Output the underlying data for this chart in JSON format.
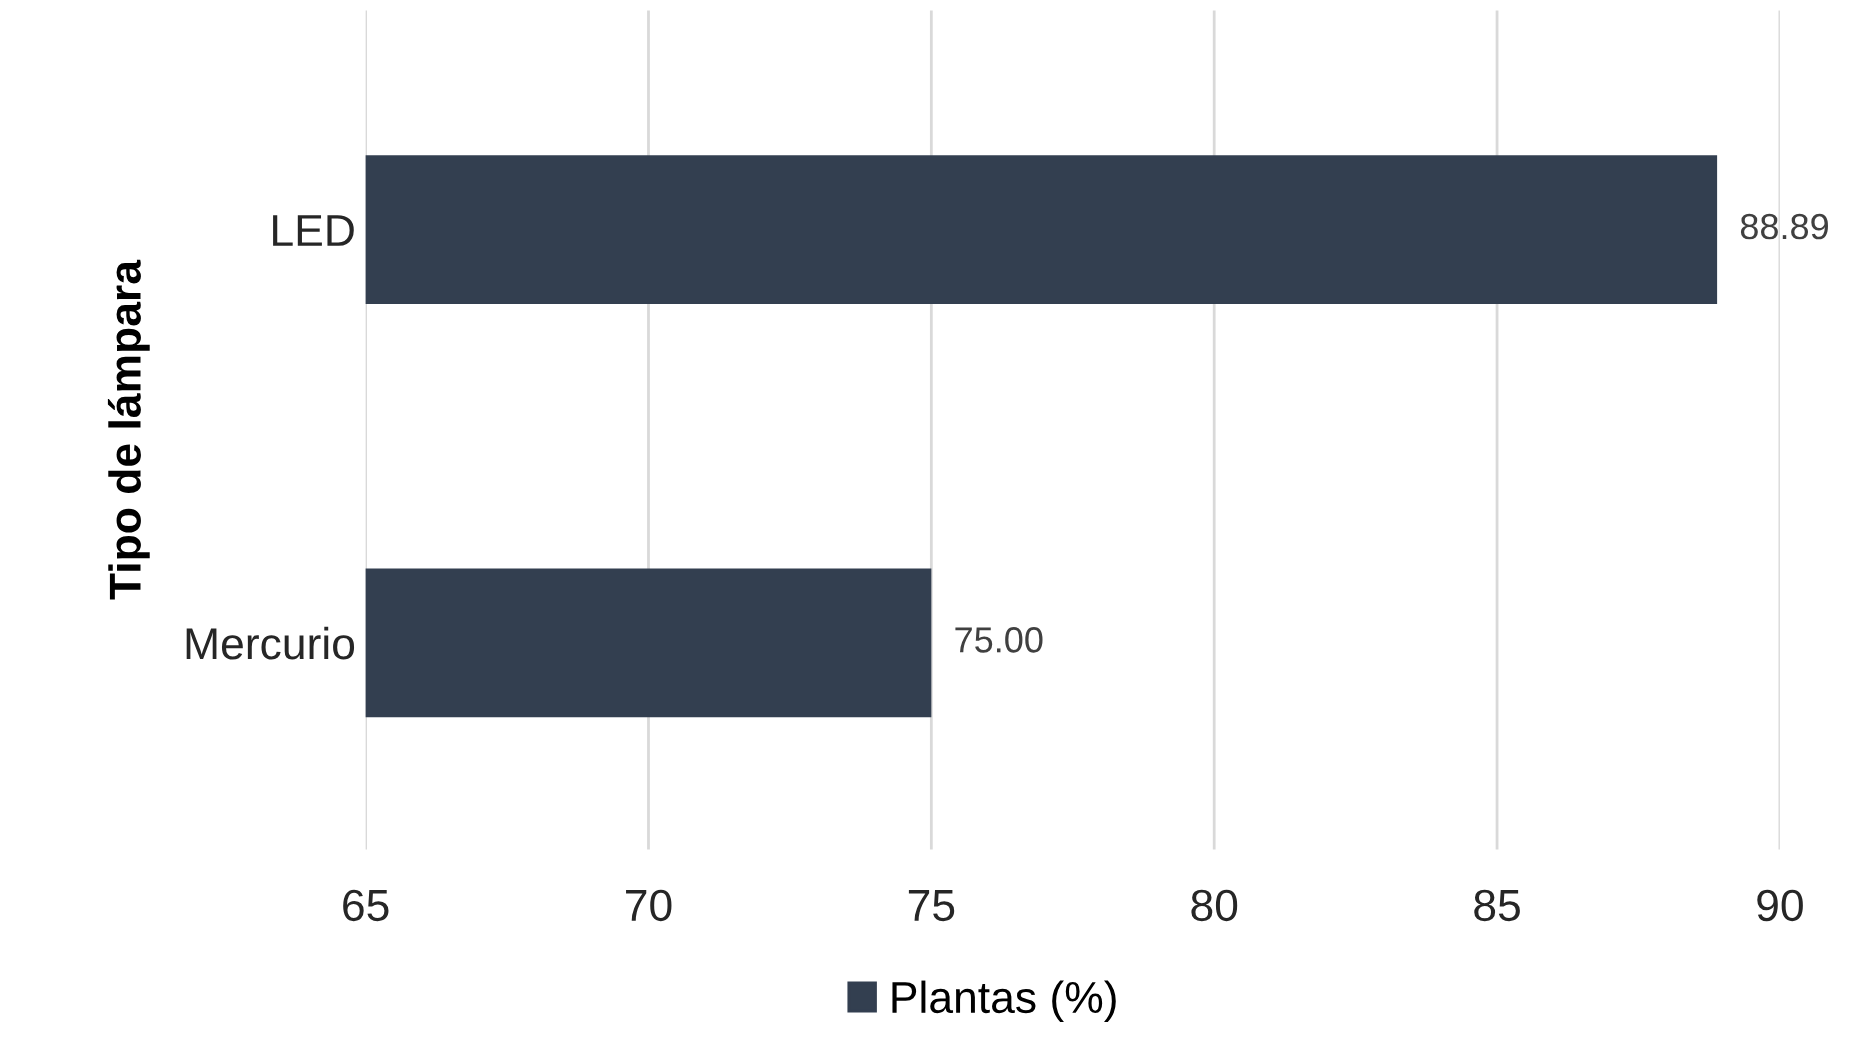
{
  "chart_data": {
    "type": "bar",
    "orientation": "horizontal",
    "ylabel": "Tipo de lámpara",
    "categories": [
      "LED",
      "Mercurio"
    ],
    "series": [
      {
        "name": "Plantas (%)",
        "color": "#333f50",
        "values": [
          88.89,
          75.0
        ],
        "value_labels": [
          "88.89",
          "75.00"
        ]
      }
    ],
    "xlim": [
      65,
      90
    ],
    "xticks": [
      65,
      70,
      75,
      80,
      85,
      90
    ],
    "grid": "x",
    "legend": "bottom"
  }
}
